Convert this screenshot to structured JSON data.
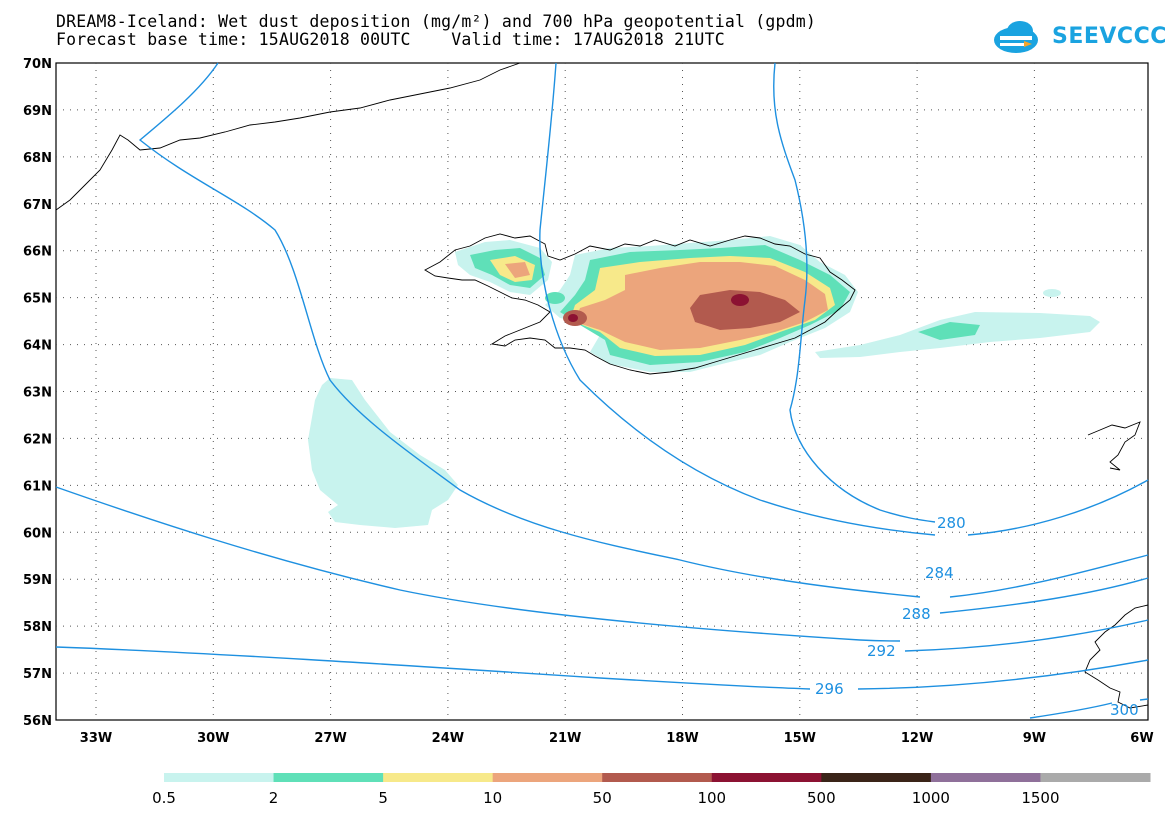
{
  "title": {
    "line1": "DREAM8-Iceland: Wet dust deposition (mg/m²) and 700 hPa geopotential (gpdm)",
    "line2": "Forecast base time: 15AUG2018 00UTC    Valid time: 17AUG2018 21UTC"
  },
  "logo": {
    "text": "SEEVCCC",
    "icon": "cloud-logo-icon",
    "color": "#1aa3e0"
  },
  "map": {
    "lat_labels": [
      "70N",
      "69N",
      "68N",
      "67N",
      "66N",
      "65N",
      "64N",
      "63N",
      "62N",
      "61N",
      "60N",
      "59N",
      "58N",
      "57N",
      "56N"
    ],
    "lon_labels": [
      "33W",
      "30W",
      "27W",
      "24W",
      "21W",
      "18W",
      "15W",
      "12W",
      "9W",
      "6W"
    ],
    "contour_color": "#1e90e0",
    "contour_labels": [
      "280",
      "284",
      "288",
      "292",
      "296",
      "300"
    ]
  },
  "legend": {
    "colors": [
      "#c8f3ee",
      "#5fe0b8",
      "#f7e98a",
      "#eca57c",
      "#b25a4e",
      "#8c1232",
      "#3a2418",
      "#8f709a",
      "#aaaaaa"
    ],
    "labels": [
      "0.5",
      "2",
      "5",
      "10",
      "50",
      "100",
      "500",
      "1000",
      "1500"
    ]
  }
}
